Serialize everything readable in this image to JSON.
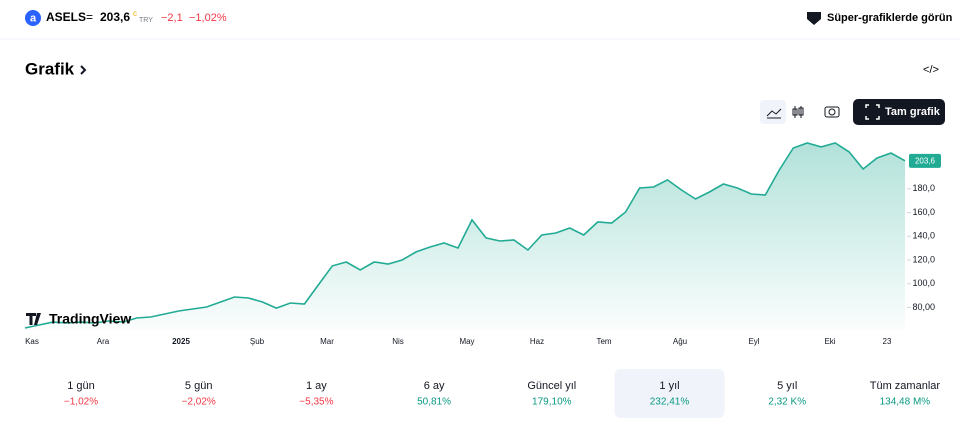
{
  "header": {
    "symbol": "ASELS",
    "price": "203,6",
    "price_flag": "c",
    "currency": "TRY",
    "change": "−2,1",
    "change_pct": "−1,02%",
    "cta": "Süper-grafiklerde görün"
  },
  "section_title": "Grafik",
  "full_chart": "Tam grafik",
  "brand": "TradingView",
  "chart_data": {
    "type": "area",
    "color": "#22ab94",
    "values": [
      62.7,
      65.2,
      67.7,
      66.9,
      67.7,
      66.9,
      68.6,
      67.7,
      71.1,
      72.0,
      74.5,
      77.0,
      78.7,
      80.4,
      84.6,
      88.8,
      88.0,
      84.6,
      79.5,
      83.8,
      82.9,
      98.9,
      115.0,
      118.3,
      111.6,
      118.3,
      116.6,
      120.0,
      126.8,
      131.0,
      134.3,
      130.1,
      153.8,
      138.6,
      136.0,
      136.9,
      128.4,
      141.1,
      142.8,
      147.0,
      141.1,
      152.0,
      151.2,
      160.5,
      180.7,
      181.5,
      187.5,
      179.0,
      171.4,
      177.3,
      184.1,
      180.7,
      175.6,
      174.8,
      195.9,
      214.4,
      218.6,
      215.3,
      218.6,
      211.1,
      196.7,
      206.0,
      210.2,
      203.6
    ],
    "xlabels": [
      "Kas",
      "Ara",
      "2025",
      "Şub",
      "Mar",
      "Nis",
      "May",
      "Haz",
      "Tem",
      "Ağu",
      "Eyl",
      "Eki",
      "23"
    ],
    "ylim": [
      61,
      222
    ],
    "yticks": [
      {
        "value": 80,
        "label": "80,00"
      },
      {
        "value": 100,
        "label": "100,0"
      },
      {
        "value": 120,
        "label": "120,0"
      },
      {
        "value": 140,
        "label": "140,0"
      },
      {
        "value": 160,
        "label": "160,0"
      },
      {
        "value": 180,
        "label": "180,0"
      }
    ],
    "last_label": "203,6"
  },
  "periods": [
    {
      "name": "1 gün",
      "change": "−1,02%",
      "dir": "down"
    },
    {
      "name": "5 gün",
      "change": "−2,02%",
      "dir": "down"
    },
    {
      "name": "1 ay",
      "change": "−5,35%",
      "dir": "down"
    },
    {
      "name": "6 ay",
      "change": "50,81%",
      "dir": "up"
    },
    {
      "name": "Güncel yıl",
      "change": "179,10%",
      "dir": "up"
    },
    {
      "name": "1 yıl",
      "change": "232,41%",
      "dir": "up",
      "selected": true
    },
    {
      "name": "5 yıl",
      "change": "2,32 K%",
      "dir": "up"
    },
    {
      "name": "Tüm zamanlar",
      "change": "134,48 M%",
      "dir": "up"
    }
  ]
}
